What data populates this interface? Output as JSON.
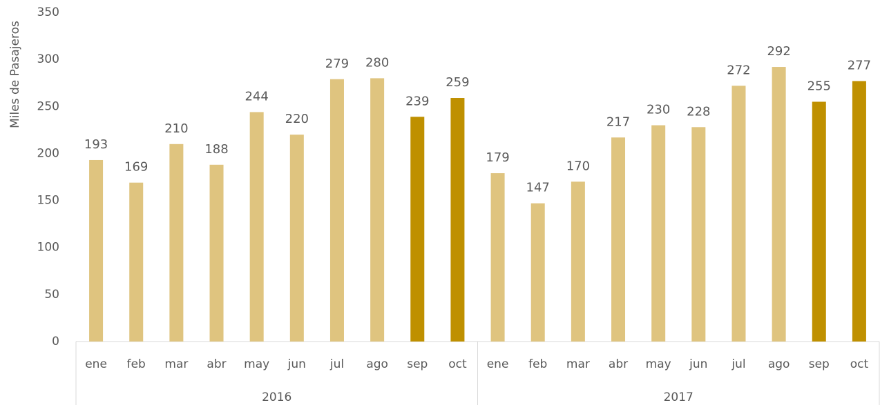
{
  "chart_data": {
    "type": "bar",
    "y_label": "Miles de Pasajeros",
    "categories": [
      "ene",
      "feb",
      "mar",
      "abr",
      "may",
      "jun",
      "jul",
      "ago",
      "sep",
      "oct",
      "ene",
      "feb",
      "mar",
      "abr",
      "may",
      "jun",
      "jul",
      "ago",
      "sep",
      "oct"
    ],
    "group_labels": [
      "2016",
      "2017"
    ],
    "values": [
      193,
      169,
      210,
      188,
      244,
      220,
      279,
      280,
      239,
      259,
      179,
      147,
      170,
      217,
      230,
      228,
      272,
      292,
      255,
      277
    ],
    "colors": [
      "#dfc47f",
      "#dfc47f",
      "#dfc47f",
      "#dfc47f",
      "#dfc47f",
      "#dfc47f",
      "#dfc47f",
      "#dfc47f",
      "#bf9000",
      "#bf9000",
      "#dfc47f",
      "#dfc47f",
      "#dfc47f",
      "#dfc47f",
      "#dfc47f",
      "#dfc47f",
      "#dfc47f",
      "#dfc47f",
      "#bf9000",
      "#bf9000"
    ],
    "ylim": [
      0,
      350
    ],
    "yticks": [
      0,
      50,
      100,
      150,
      200,
      250,
      300,
      350
    ],
    "grid": false
  }
}
